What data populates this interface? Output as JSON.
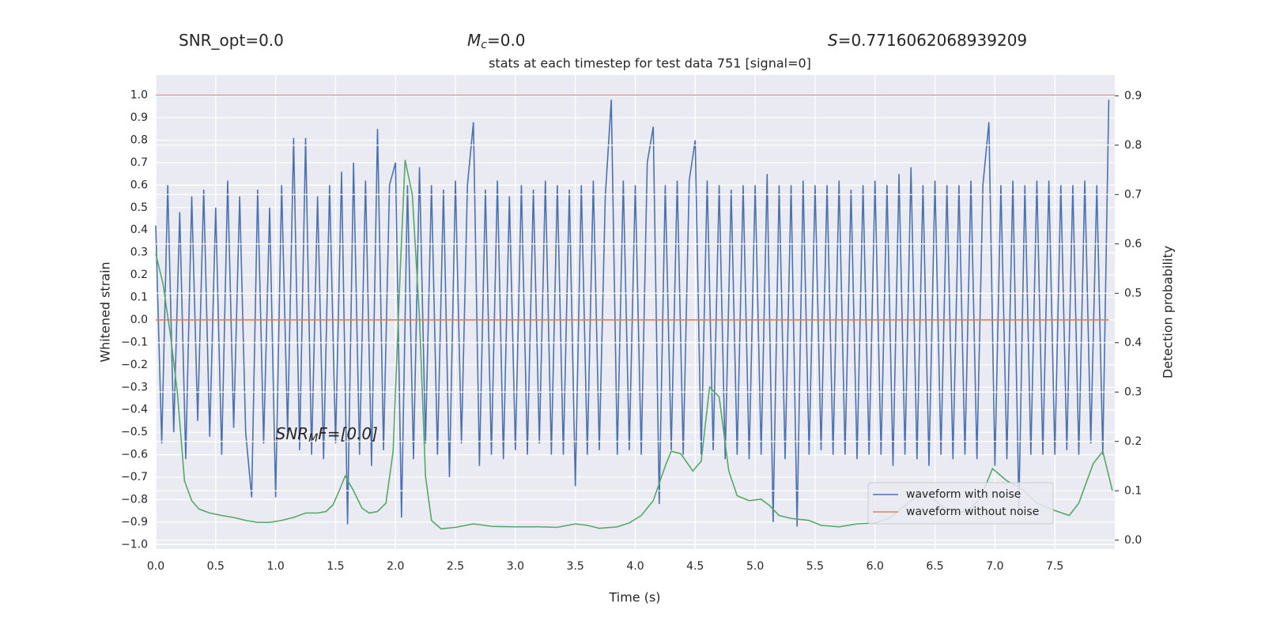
{
  "chart_data": {
    "type": "line",
    "title": "stats at each timestep for test data 751 [signal=0]",
    "header_texts": [
      {
        "main": "SNR_opt=0.0"
      },
      {
        "main": "M",
        "sub": "c",
        "rest": "=0.0"
      },
      {
        "main": "S",
        "rest": "=0.7716062068939209"
      }
    ],
    "annotation": {
      "main": "SNR",
      "sub": "M",
      "rest": "F=[0.0]",
      "x": 1.0,
      "y": -0.51
    },
    "x_label": "Time (s)",
    "y_label": "Whitened strain",
    "y2_label": "Detection probability",
    "xlim": [
      0,
      8.0
    ],
    "ylim": [
      -1.02,
      1.09
    ],
    "y2lim": [
      -0.018,
      0.942
    ],
    "xticks": [
      {
        "value": 0,
        "label": "0.0"
      },
      {
        "value": 0.5,
        "label": "0.5"
      },
      {
        "value": 1,
        "label": "1.0"
      },
      {
        "value": 1.5,
        "label": "1.5"
      },
      {
        "value": 2,
        "label": "2.0"
      },
      {
        "value": 2.5,
        "label": "2.5"
      },
      {
        "value": 3,
        "label": "3.0"
      },
      {
        "value": 3.5,
        "label": "3.5"
      },
      {
        "value": 4,
        "label": "4.0"
      },
      {
        "value": 4.5,
        "label": "4.5"
      },
      {
        "value": 5,
        "label": "5.0"
      },
      {
        "value": 5.5,
        "label": "5.5"
      },
      {
        "value": 6,
        "label": "6.0"
      },
      {
        "value": 6.5,
        "label": "6.5"
      },
      {
        "value": 7,
        "label": "7.0"
      },
      {
        "value": 7.5,
        "label": "7.5"
      }
    ],
    "yticks": [
      {
        "value": -1,
        "label": "−1.0"
      },
      {
        "value": -0.9,
        "label": "−0.9"
      },
      {
        "value": -0.8,
        "label": "−0.8"
      },
      {
        "value": -0.7,
        "label": "−0.7"
      },
      {
        "value": -0.6,
        "label": "−0.6"
      },
      {
        "value": -0.5,
        "label": "−0.5"
      },
      {
        "value": -0.4,
        "label": "−0.4"
      },
      {
        "value": -0.3,
        "label": "−0.3"
      },
      {
        "value": -0.2,
        "label": "−0.2"
      },
      {
        "value": -0.1,
        "label": "−0.1"
      },
      {
        "value": 0,
        "label": "0.0"
      },
      {
        "value": 0.1,
        "label": "0.1"
      },
      {
        "value": 0.2,
        "label": "0.2"
      },
      {
        "value": 0.3,
        "label": "0.3"
      },
      {
        "value": 0.4,
        "label": "0.4"
      },
      {
        "value": 0.5,
        "label": "0.5"
      },
      {
        "value": 0.6,
        "label": "0.6"
      },
      {
        "value": 0.7,
        "label": "0.7"
      },
      {
        "value": 0.8,
        "label": "0.8"
      },
      {
        "value": 0.9,
        "label": "0.9"
      },
      {
        "value": 1,
        "label": "1.0"
      }
    ],
    "y2ticks": [
      {
        "value": 0,
        "label": "0.0"
      },
      {
        "value": 0.1,
        "label": "0.1"
      },
      {
        "value": 0.2,
        "label": "0.2"
      },
      {
        "value": 0.3,
        "label": "0.3"
      },
      {
        "value": 0.4,
        "label": "0.4"
      },
      {
        "value": 0.5,
        "label": "0.5"
      },
      {
        "value": 0.6,
        "label": "0.6"
      },
      {
        "value": 0.7,
        "label": "0.7"
      },
      {
        "value": 0.8,
        "label": "0.8"
      },
      {
        "value": 0.9,
        "label": "0.9"
      }
    ],
    "grid": true,
    "legend_loc": "lower right",
    "threshold": {
      "value": 1.0,
      "color": "#c44e52"
    },
    "x": [
      0,
      0.05,
      0.1,
      0.15,
      0.2,
      0.25,
      0.3,
      0.35,
      0.4,
      0.45,
      0.5,
      0.55,
      0.6,
      0.65,
      0.7,
      0.75,
      0.8,
      0.85,
      0.9,
      0.95,
      1,
      1.05,
      1.1,
      1.15,
      1.2,
      1.25,
      1.3,
      1.35,
      1.4,
      1.45,
      1.5,
      1.55,
      1.6,
      1.65,
      1.7,
      1.75,
      1.8,
      1.85,
      1.9,
      1.95,
      2,
      2.05,
      2.1,
      2.15,
      2.2,
      2.25,
      2.3,
      2.35,
      2.4,
      2.45,
      2.5,
      2.55,
      2.6,
      2.65,
      2.7,
      2.75,
      2.8,
      2.85,
      2.9,
      2.95,
      3,
      3.05,
      3.1,
      3.15,
      3.2,
      3.25,
      3.3,
      3.35,
      3.4,
      3.45,
      3.5,
      3.55,
      3.6,
      3.65,
      3.7,
      3.75,
      3.8,
      3.85,
      3.9,
      3.95,
      4,
      4.05,
      4.1,
      4.15,
      4.2,
      4.25,
      4.3,
      4.35,
      4.4,
      4.45,
      4.5,
      4.55,
      4.6,
      4.65,
      4.7,
      4.75,
      4.8,
      4.85,
      4.9,
      4.95,
      5,
      5.05,
      5.1,
      5.15,
      5.2,
      5.25,
      5.3,
      5.35,
      5.4,
      5.45,
      5.5,
      5.55,
      5.6,
      5.65,
      5.7,
      5.75,
      5.8,
      5.85,
      5.9,
      5.95,
      6,
      6.05,
      6.1,
      6.15,
      6.2,
      6.25,
      6.3,
      6.35,
      6.4,
      6.45,
      6.5,
      6.55,
      6.6,
      6.65,
      6.7,
      6.75,
      6.8,
      6.85,
      6.9,
      6.95,
      7,
      7.05,
      7.1,
      7.15,
      7.2,
      7.25,
      7.3,
      7.35,
      7.4,
      7.45,
      7.5,
      7.55,
      7.6,
      7.65,
      7.7,
      7.75,
      7.8,
      7.85,
      7.9,
      7.95
    ],
    "series": [
      {
        "name": "waveform with noise",
        "color": "#4c72b0",
        "legend": true,
        "values": [
          0.42,
          -0.55,
          0.6,
          -0.5,
          0.48,
          -0.62,
          0.55,
          -0.45,
          0.58,
          -0.52,
          0.5,
          -0.6,
          0.62,
          -0.48,
          0.55,
          -0.5,
          -0.79,
          0.58,
          -0.55,
          0.5,
          -0.79,
          0.6,
          -0.5,
          0.81,
          -0.58,
          0.81,
          -0.6,
          0.55,
          -0.62,
          0.6,
          -0.55,
          0.66,
          -0.91,
          0.7,
          -0.6,
          0.62,
          -0.65,
          0.85,
          -0.58,
          0.6,
          0.7,
          -0.88,
          0.6,
          -0.62,
          0.68,
          -0.55,
          0.6,
          -0.6,
          0.58,
          -0.7,
          0.62,
          -0.55,
          0.6,
          0.88,
          -0.65,
          0.58,
          -0.6,
          0.62,
          -0.62,
          0.55,
          -0.58,
          0.6,
          -0.6,
          0.58,
          -0.55,
          0.62,
          -0.6,
          0.6,
          -0.6,
          0.58,
          -0.74,
          0.6,
          -0.6,
          0.62,
          -0.58,
          0.55,
          0.98,
          -0.6,
          0.62,
          -0.58,
          0.6,
          -0.6,
          0.7,
          0.86,
          -0.82,
          0.6,
          -0.58,
          0.62,
          -0.6,
          0.62,
          0.8,
          -0.6,
          0.62,
          -0.58,
          0.6,
          -0.62,
          0.58,
          -0.6,
          0.6,
          -0.62,
          0.6,
          -0.6,
          0.65,
          -0.9,
          0.6,
          -0.62,
          0.6,
          -0.92,
          0.62,
          -0.6,
          0.6,
          -0.58,
          0.6,
          -0.6,
          0.62,
          -0.6,
          0.58,
          -0.62,
          0.6,
          -0.6,
          0.62,
          -0.6,
          0.6,
          -0.65,
          0.65,
          -0.6,
          0.68,
          -0.62,
          0.6,
          -0.65,
          0.62,
          -0.6,
          0.6,
          -0.62,
          0.6,
          -0.6,
          0.62,
          -0.62,
          0.6,
          0.88,
          -0.65,
          0.6,
          -0.62,
          0.62,
          -0.84,
          0.6,
          -0.6,
          0.62,
          -0.6,
          0.62,
          -0.6,
          0.6,
          -0.58,
          0.6,
          -0.6,
          0.62,
          -0.55,
          0.6,
          -0.6,
          0.98
        ]
      },
      {
        "name": "waveform without noise",
        "color": "#dd8452",
        "legend": true,
        "values": [
          0,
          0,
          0,
          0,
          0,
          0,
          0,
          0,
          0,
          0,
          0,
          0,
          0,
          0,
          0,
          0,
          0,
          0,
          0,
          0,
          0,
          0,
          0,
          0,
          0,
          0,
          0,
          0,
          0,
          0,
          0,
          0,
          0,
          0,
          0,
          0,
          0,
          0,
          0,
          0,
          0,
          0,
          0,
          0,
          0,
          0,
          0,
          0,
          0,
          0,
          0,
          0,
          0,
          0,
          0,
          0,
          0,
          0,
          0,
          0,
          0,
          0,
          0,
          0,
          0,
          0,
          0,
          0,
          0,
          0,
          0,
          0,
          0,
          0,
          0,
          0,
          0,
          0,
          0,
          0,
          0,
          0,
          0,
          0,
          0,
          0,
          0,
          0,
          0,
          0,
          0,
          0,
          0,
          0,
          0,
          0,
          0,
          0,
          0,
          0,
          0,
          0,
          0,
          0,
          0,
          0,
          0,
          0,
          0,
          0,
          0,
          0,
          0,
          0,
          0,
          0,
          0,
          0,
          0,
          0,
          0,
          0,
          0,
          0,
          0,
          0,
          0,
          0,
          0,
          0,
          0,
          0,
          0,
          0,
          0,
          0,
          0,
          0,
          0,
          0,
          0,
          0,
          0,
          0,
          0,
          0,
          0,
          0,
          0,
          0,
          0,
          0,
          0,
          0,
          0,
          0,
          0,
          0,
          0,
          0
        ]
      },
      {
        "axis": "y2",
        "color": "#55a868",
        "legend": false,
        "x": [
          0,
          0.06,
          0.12,
          0.18,
          0.24,
          0.3,
          0.36,
          0.45,
          0.55,
          0.65,
          0.75,
          0.85,
          0.95,
          1.05,
          1.15,
          1.25,
          1.35,
          1.42,
          1.48,
          1.53,
          1.58,
          1.65,
          1.72,
          1.78,
          1.85,
          1.92,
          1.98,
          2.04,
          2.08,
          2.14,
          2.2,
          2.25,
          2.3,
          2.38,
          2.5,
          2.65,
          2.8,
          3.0,
          3.2,
          3.35,
          3.5,
          3.6,
          3.7,
          3.85,
          3.95,
          4.05,
          4.15,
          4.25,
          4.3,
          4.38,
          4.48,
          4.55,
          4.62,
          4.7,
          4.78,
          4.85,
          4.95,
          5.05,
          5.12,
          5.2,
          5.3,
          5.45,
          5.55,
          5.7,
          5.85,
          6.0,
          6.12,
          6.25,
          6.38,
          6.45,
          6.55,
          6.68,
          6.78,
          6.88,
          6.98,
          7.1,
          7.22,
          7.35,
          7.5,
          7.62,
          7.7,
          7.82,
          7.9,
          7.98
        ],
        "values": [
          0.58,
          0.52,
          0.42,
          0.3,
          0.12,
          0.08,
          0.063,
          0.055,
          0.05,
          0.046,
          0.04,
          0.036,
          0.036,
          0.04,
          0.046,
          0.055,
          0.055,
          0.058,
          0.072,
          0.1,
          0.13,
          0.1,
          0.065,
          0.055,
          0.058,
          0.075,
          0.18,
          0.55,
          0.77,
          0.7,
          0.45,
          0.13,
          0.04,
          0.023,
          0.026,
          0.033,
          0.028,
          0.027,
          0.027,
          0.026,
          0.033,
          0.03,
          0.024,
          0.027,
          0.035,
          0.05,
          0.08,
          0.15,
          0.18,
          0.175,
          0.14,
          0.16,
          0.31,
          0.29,
          0.14,
          0.09,
          0.08,
          0.083,
          0.07,
          0.05,
          0.044,
          0.04,
          0.03,
          0.027,
          0.033,
          0.035,
          0.045,
          0.07,
          0.095,
          0.093,
          0.07,
          0.055,
          0.06,
          0.085,
          0.145,
          0.12,
          0.105,
          0.075,
          0.06,
          0.05,
          0.075,
          0.155,
          0.18,
          0.1
        ]
      }
    ]
  }
}
